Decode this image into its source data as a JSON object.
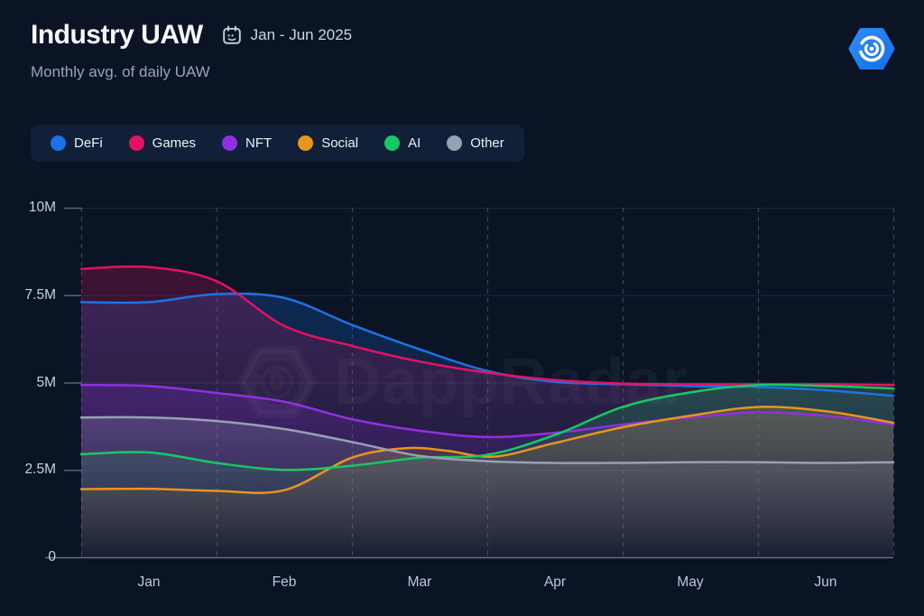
{
  "header": {
    "title": "Industry UAW",
    "period": "Jan - Jun 2025",
    "subtitle": "Monthly avg. of daily UAW"
  },
  "watermark": {
    "text": "DappRadar"
  },
  "brand": {
    "name": "DappRadar logo",
    "hex_color": "#1f7bf2"
  },
  "legend": {
    "position": "top-left",
    "items": [
      {
        "label": "DeFi",
        "color": "#1e72e8"
      },
      {
        "label": "Games",
        "color": "#e31262"
      },
      {
        "label": "NFT",
        "color": "#9130e0"
      },
      {
        "label": "Social",
        "color": "#e8941f"
      },
      {
        "label": "AI",
        "color": "#17c964"
      },
      {
        "label": "Other",
        "color": "#97a1b5"
      }
    ]
  },
  "chart_data": {
    "type": "line",
    "title": "Industry UAW",
    "subtitle": "Monthly avg. of daily UAW",
    "x_ticks": [
      "Jan",
      "Feb",
      "Mar",
      "Apr",
      "May",
      "Jun"
    ],
    "y_ticks": [
      "10M",
      "7.5M",
      "5M",
      "2.5M",
      "0"
    ],
    "y_tick_values_m": [
      10,
      7.5,
      5,
      2.5,
      0
    ],
    "ylim_m": [
      0,
      10
    ],
    "unit": "millions of unique active wallets (M)",
    "grid": "faint horizontal lines at ticks, dashed vertical lines at month boundaries",
    "series": [
      {
        "name": "DeFi",
        "color": "#1e72e8",
        "monthly_avg_uaw_m": {
          "Jan": 7.3,
          "Feb": 7.4,
          "Mar": 5.95,
          "Apr": 5.0,
          "May": 4.9,
          "Jun": 4.8
        },
        "curve": [
          [
            -0.5,
            7.3
          ],
          [
            0,
            7.3
          ],
          [
            0.5,
            7.53
          ],
          [
            1,
            7.42
          ],
          [
            1.5,
            6.65
          ],
          [
            2,
            5.95
          ],
          [
            2.5,
            5.33
          ],
          [
            3,
            5.02
          ],
          [
            3.5,
            4.95
          ],
          [
            4,
            4.9
          ],
          [
            4.5,
            4.87
          ],
          [
            5,
            4.78
          ],
          [
            5.5,
            4.62
          ]
        ]
      },
      {
        "name": "Games",
        "color": "#e31262",
        "monthly_avg_uaw_m": {
          "Jan": 8.3,
          "Feb": 6.6,
          "Mar": 5.6,
          "Apr": 5.1,
          "May": 4.95,
          "Jun": 4.95
        },
        "curve": [
          [
            -0.5,
            8.25
          ],
          [
            0,
            8.3
          ],
          [
            0.5,
            7.9
          ],
          [
            1,
            6.62
          ],
          [
            1.5,
            6.05
          ],
          [
            2,
            5.6
          ],
          [
            2.5,
            5.28
          ],
          [
            3,
            5.07
          ],
          [
            3.5,
            4.97
          ],
          [
            4,
            4.95
          ],
          [
            4.5,
            4.95
          ],
          [
            5,
            4.95
          ],
          [
            5.5,
            4.93
          ]
        ]
      },
      {
        "name": "NFT",
        "color": "#9130e0",
        "monthly_avg_uaw_m": {
          "Jan": 4.9,
          "Feb": 4.45,
          "Mar": 3.6,
          "Apr": 3.55,
          "May": 4.0,
          "Jun": 4.05
        },
        "curve": [
          [
            -0.5,
            4.93
          ],
          [
            0,
            4.9
          ],
          [
            0.5,
            4.7
          ],
          [
            1,
            4.45
          ],
          [
            1.5,
            3.95
          ],
          [
            2,
            3.62
          ],
          [
            2.5,
            3.44
          ],
          [
            3,
            3.56
          ],
          [
            3.5,
            3.8
          ],
          [
            4,
            4.0
          ],
          [
            4.5,
            4.15
          ],
          [
            5,
            4.05
          ],
          [
            5.5,
            3.8
          ]
        ]
      },
      {
        "name": "Social",
        "color": "#e8941f",
        "monthly_avg_uaw_m": {
          "Jan": 1.95,
          "Feb": 1.9,
          "Mar": 3.05,
          "Apr": 3.25,
          "May": 4.05,
          "Jun": 4.2
        },
        "curve": [
          [
            -0.5,
            1.95
          ],
          [
            0,
            1.96
          ],
          [
            0.5,
            1.9
          ],
          [
            1,
            1.92
          ],
          [
            1.5,
            2.85
          ],
          [
            1.9,
            3.12
          ],
          [
            2.2,
            3.05
          ],
          [
            2.55,
            2.88
          ],
          [
            3,
            3.27
          ],
          [
            3.5,
            3.72
          ],
          [
            4,
            4.05
          ],
          [
            4.5,
            4.3
          ],
          [
            5,
            4.18
          ],
          [
            5.5,
            3.85
          ]
        ]
      },
      {
        "name": "AI",
        "color": "#17c964",
        "monthly_avg_uaw_m": {
          "Jan": 3.0,
          "Feb": 2.5,
          "Mar": 2.85,
          "Apr": 3.5,
          "May": 4.7,
          "Jun": 4.9
        },
        "curve": [
          [
            -0.5,
            2.95
          ],
          [
            0,
            3.0
          ],
          [
            0.5,
            2.7
          ],
          [
            1,
            2.5
          ],
          [
            1.5,
            2.62
          ],
          [
            2,
            2.85
          ],
          [
            2.5,
            2.93
          ],
          [
            3,
            3.5
          ],
          [
            3.5,
            4.3
          ],
          [
            4,
            4.72
          ],
          [
            4.5,
            4.93
          ],
          [
            5,
            4.9
          ],
          [
            5.5,
            4.83
          ]
        ]
      },
      {
        "name": "Other",
        "color": "#97a1b5",
        "monthly_avg_uaw_m": {
          "Jan": 4.0,
          "Feb": 3.65,
          "Mar": 2.9,
          "Apr": 2.7,
          "May": 2.7,
          "Jun": 2.7
        },
        "curve": [
          [
            -0.5,
            4.0
          ],
          [
            0,
            4.0
          ],
          [
            0.5,
            3.9
          ],
          [
            1,
            3.67
          ],
          [
            1.5,
            3.3
          ],
          [
            2,
            2.9
          ],
          [
            2.5,
            2.75
          ],
          [
            3,
            2.7
          ],
          [
            3.5,
            2.7
          ],
          [
            4,
            2.72
          ],
          [
            4.5,
            2.72
          ],
          [
            5,
            2.7
          ],
          [
            5.5,
            2.72
          ]
        ]
      }
    ]
  }
}
